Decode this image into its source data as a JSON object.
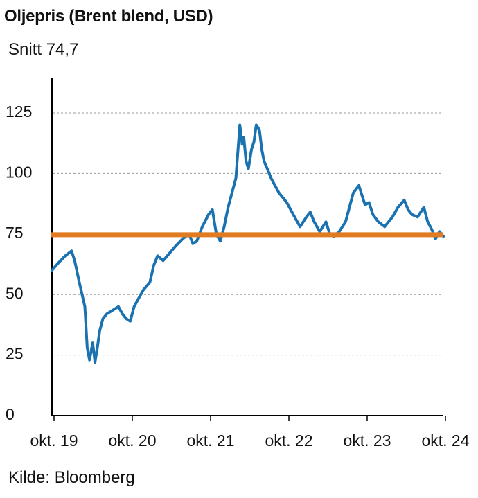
{
  "chart_data": {
    "type": "line",
    "title": "Oljepris (Brent blend, USD)",
    "subtitle": "Snitt 74,7",
    "source": "Kilde: Bloomberg",
    "x_tick_labels": [
      "okt. 19",
      "okt. 20",
      "okt. 21",
      "okt. 22",
      "okt. 23",
      "okt. 24"
    ],
    "y_ticks": [
      0,
      25,
      50,
      75,
      100,
      125
    ],
    "ylim": [
      0,
      140
    ],
    "xlim": [
      2019.75,
      2024.75
    ],
    "grid": "horizontal dashed",
    "average_line": {
      "value": 74.7,
      "color": "#e07b22"
    },
    "series": [
      {
        "color": "#1a72b0",
        "x": [
          2019.75,
          2019.83,
          2019.92,
          2020.0,
          2020.04,
          2020.1,
          2020.17,
          2020.2,
          2020.23,
          2020.27,
          2020.3,
          2020.33,
          2020.36,
          2020.4,
          2020.45,
          2020.5,
          2020.55,
          2020.6,
          2020.65,
          2020.7,
          2020.75,
          2020.8,
          2020.85,
          2020.92,
          2021.0,
          2021.05,
          2021.1,
          2021.17,
          2021.25,
          2021.33,
          2021.42,
          2021.5,
          2021.55,
          2021.6,
          2021.67,
          2021.75,
          2021.8,
          2021.85,
          2021.9,
          2021.95,
          2022.0,
          2022.05,
          2022.1,
          2022.15,
          2022.18,
          2022.2,
          2022.23,
          2022.26,
          2022.3,
          2022.33,
          2022.36,
          2022.4,
          2022.43,
          2022.46,
          2022.5,
          2022.55,
          2022.6,
          2022.65,
          2022.7,
          2022.75,
          2022.8,
          2022.85,
          2022.92,
          2023.0,
          2023.05,
          2023.1,
          2023.17,
          2023.25,
          2023.3,
          2023.35,
          2023.42,
          2023.5,
          2023.55,
          2023.6,
          2023.67,
          2023.72,
          2023.75,
          2023.8,
          2023.85,
          2023.92,
          2024.0,
          2024.05,
          2024.1,
          2024.17,
          2024.25,
          2024.3,
          2024.35,
          2024.42,
          2024.5,
          2024.55,
          2024.6,
          2024.65,
          2024.7,
          2024.75
        ],
        "y": [
          60,
          63,
          66,
          68,
          64,
          55,
          45,
          28,
          23,
          30,
          22,
          28,
          35,
          40,
          42,
          43,
          44,
          45,
          42,
          40,
          39,
          45,
          48,
          52,
          55,
          62,
          66,
          64,
          67,
          70,
          73,
          75,
          71,
          72,
          78,
          83,
          85,
          75,
          72,
          78,
          86,
          92,
          98,
          120,
          112,
          115,
          105,
          102,
          110,
          113,
          120,
          118,
          110,
          105,
          102,
          98,
          95,
          92,
          90,
          88,
          85,
          82,
          78,
          82,
          84,
          80,
          76,
          80,
          75,
          74,
          76,
          80,
          86,
          92,
          95,
          90,
          87,
          88,
          83,
          80,
          78,
          80,
          82,
          86,
          89,
          85,
          83,
          82,
          86,
          80,
          77,
          73,
          76,
          74
        ]
      }
    ]
  }
}
